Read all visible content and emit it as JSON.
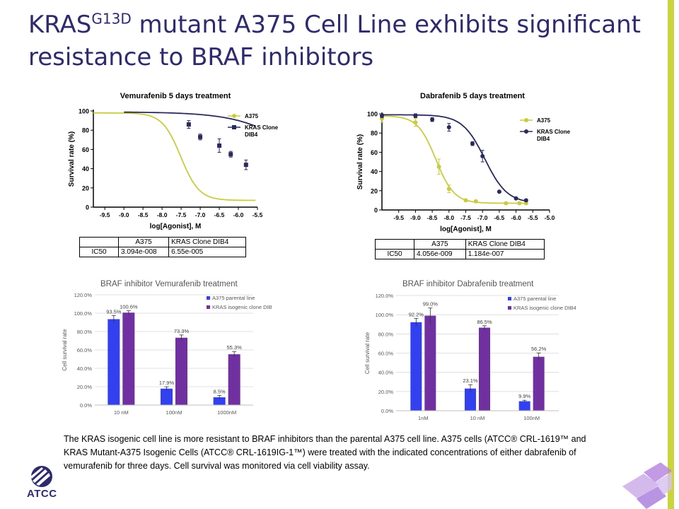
{
  "slide": {
    "title_pre": "KRAS",
    "title_sup": "G13D",
    "title_post": " mutant A375 Cell Line exhibits significant resistance to BRAF inhibitors",
    "caption": "The KRAS isogenic cell line is more resistant to BRAF inhibitors than the parental A375 cell line. A375 cells (ATCC® CRL-1619™ and KRAS Mutant-A375  Isogenic Cells (ATCC® CRL-1619IG-1™) were treated with the indicated concentrations of either dabrafenib of vemurafenib for three days. Cell survival was monitored via cell viability assay.",
    "logo_text": "ATCC",
    "accent_color": "#c9d53a",
    "title_color": "#2e2a6e"
  },
  "chart_data": [
    {
      "id": "vemurafenib-curve",
      "type": "line",
      "title": "Vemurafenib 5 days treatment",
      "xlabel": "log[Agonist], M",
      "ylabel": "Survival rate (%)",
      "xlim": [
        -9.8,
        -5.5
      ],
      "ylim": [
        0,
        100
      ],
      "xticks": [
        -9.5,
        -9.0,
        -8.5,
        -8.0,
        -7.5,
        -7.0,
        -6.5,
        -6.0,
        -5.5
      ],
      "xtick_labels": [
        "-9.5",
        "-9.0",
        "-8.5",
        "-8.0",
        "-7.5",
        "-7.0",
        "-6.5",
        "-6.0",
        "-5.5"
      ],
      "yticks": [
        0,
        20,
        40,
        60,
        80,
        100
      ],
      "ytick_labels": [
        "0",
        "20",
        "40",
        "60",
        "80",
        "100"
      ],
      "legend_position": "top-right",
      "series": [
        {
          "name": "A375",
          "color": "#c9cc3f",
          "marker": "circle",
          "curve": {
            "top": 98,
            "bottom": 7,
            "logic50": -7.51,
            "hill": -1.8,
            "from": -9.8,
            "to": -5.55
          },
          "points": []
        },
        {
          "name": "KRAS Clone DIB4",
          "color": "#2b2a5e",
          "marker": "square",
          "curve": {
            "top": 99,
            "bottom": 0,
            "logic50": -4.18,
            "hill": -0.55,
            "from": -9.0,
            "to": -5.55
          },
          "points": [
            {
              "x": -7.3,
              "y": 86,
              "err": 4
            },
            {
              "x": -7.0,
              "y": 73,
              "err": 3
            },
            {
              "x": -6.5,
              "y": 64,
              "err": 7
            },
            {
              "x": -6.2,
              "y": 55,
              "err": 3
            },
            {
              "x": -5.8,
              "y": 44,
              "err": 5
            }
          ]
        }
      ],
      "ic50_table": {
        "headers": [
          "",
          "A375",
          "KRAS  Clone DIB4"
        ],
        "row_label": "IC50",
        "values": [
          "3.094e-008",
          "6.55e-005"
        ]
      }
    },
    {
      "id": "dabrafenib-curve",
      "type": "line",
      "title": "Dabrafenib 5 days treatment",
      "xlabel": "log[Agonist], M",
      "ylabel": "Survival rate (%)",
      "xlim": [
        -10.0,
        -5.0
      ],
      "ylim": [
        0,
        100
      ],
      "xticks": [
        -9.5,
        -9.0,
        -8.5,
        -8.0,
        -7.5,
        -7.0,
        -6.5,
        -6.0,
        -5.5,
        -5.0
      ],
      "xtick_labels": [
        "-9.5",
        "-9.0",
        "-8.5",
        "-8.0",
        "-7.5",
        "-7.0",
        "-6.5",
        "-6.0",
        "-5.5",
        "-5.0"
      ],
      "yticks": [
        0,
        20,
        40,
        60,
        80,
        100
      ],
      "ytick_labels": [
        "0",
        "20",
        "40",
        "60",
        "80",
        "100"
      ],
      "legend_position": "top-right",
      "series": [
        {
          "name": "A375",
          "color": "#c9cc3f",
          "marker": "circle",
          "curve": {
            "top": 98,
            "bottom": 7,
            "logic50": -8.39,
            "hill": -1.6,
            "from": -10.0,
            "to": -5.65
          },
          "points": [
            {
              "x": -10.0,
              "y": 95,
              "err": 4
            },
            {
              "x": -9.0,
              "y": 91,
              "err": 4
            },
            {
              "x": -8.3,
              "y": 45,
              "err": 8
            },
            {
              "x": -8.0,
              "y": 22,
              "err": 4
            },
            {
              "x": -7.5,
              "y": 10,
              "err": 1
            },
            {
              "x": -7.2,
              "y": 9,
              "err": 1
            },
            {
              "x": -6.3,
              "y": 7,
              "err": 1
            },
            {
              "x": -5.9,
              "y": 7,
              "err": 1
            },
            {
              "x": -5.7,
              "y": 7,
              "err": 1
            }
          ]
        },
        {
          "name": "KRAS  Clone DIB4",
          "color": "#2b2a5e",
          "marker": "circle",
          "curve": {
            "top": 99,
            "bottom": 7,
            "logic50": -6.93,
            "hill": -1.3,
            "from": -10.0,
            "to": -5.65
          },
          "points": [
            {
              "x": -10.0,
              "y": 98,
              "err": 2
            },
            {
              "x": -9.0,
              "y": 98,
              "err": 2
            },
            {
              "x": -8.5,
              "y": 94,
              "err": 2
            },
            {
              "x": -8.0,
              "y": 86,
              "err": 4
            },
            {
              "x": -7.3,
              "y": 69,
              "err": 2
            },
            {
              "x": -7.0,
              "y": 56,
              "err": 6
            },
            {
              "x": -6.5,
              "y": 19,
              "err": 1
            },
            {
              "x": -6.0,
              "y": 12,
              "err": 1
            },
            {
              "x": -5.7,
              "y": 10,
              "err": 1
            }
          ]
        }
      ],
      "ic50_table": {
        "headers": [
          "",
          "A375",
          "KRAS  Clone DIB4"
        ],
        "row_label": "IC50",
        "values": [
          "4.056e-009",
          "1.184e-007"
        ]
      }
    },
    {
      "id": "vemurafenib-bars",
      "type": "bar",
      "title": "BRAF inhibitor Vemurafenib treatment",
      "ylabel": "Cell survival rate",
      "ylim": [
        0,
        120
      ],
      "yticks": [
        0,
        20,
        40,
        60,
        80,
        100,
        120
      ],
      "ytick_labels": [
        "0.0%",
        "20.0%",
        "40.0%",
        "60.0%",
        "80.0%",
        "100.0%",
        "120.0%"
      ],
      "categories": [
        "10 nM",
        "100nM",
        "1000nM"
      ],
      "legend_position": "top-right",
      "series": [
        {
          "name": "A375 parental line",
          "color": "#3340f0",
          "values": [
            93.5,
            17.9,
            8.5
          ],
          "labels": [
            "93.5%",
            "17.9%",
            "8.5%"
          ],
          "err": [
            4,
            2,
            2
          ]
        },
        {
          "name": "KRAS isogenic clone DIB4",
          "color": "#7030a0",
          "values": [
            100.6,
            73.3,
            55.3
          ],
          "labels": [
            "100.6%",
            "73.3%",
            "55.3%"
          ],
          "err": [
            2,
            3,
            3
          ]
        }
      ]
    },
    {
      "id": "dabrafenib-bars",
      "type": "bar",
      "title": "BRAF inhibitor Dabrafenib treatment",
      "ylabel": "Cell survival rate",
      "ylim": [
        0,
        120
      ],
      "yticks": [
        0,
        20,
        40,
        60,
        80,
        100,
        120
      ],
      "ytick_labels": [
        "0.0%",
        "20.0%",
        "40.0%",
        "60.0%",
        "80.0%",
        "100.0%",
        "120.0%"
      ],
      "categories": [
        "1nM",
        "10 nM",
        "100nM"
      ],
      "legend_position": "top-right",
      "series": [
        {
          "name": "A375 parental line",
          "color": "#3340f0",
          "values": [
            92.2,
            23.1,
            9.9
          ],
          "labels": [
            "92.2%",
            "23.1%",
            "9.9%"
          ],
          "err": [
            4,
            4,
            1
          ]
        },
        {
          "name": "KRAS isogenic clone DIB4",
          "color": "#7030a0",
          "values": [
            99.0,
            86.5,
            56.2
          ],
          "labels": [
            "99.0%",
            "86.5%",
            "56.2%"
          ],
          "err": [
            8,
            2,
            4
          ]
        }
      ]
    }
  ]
}
